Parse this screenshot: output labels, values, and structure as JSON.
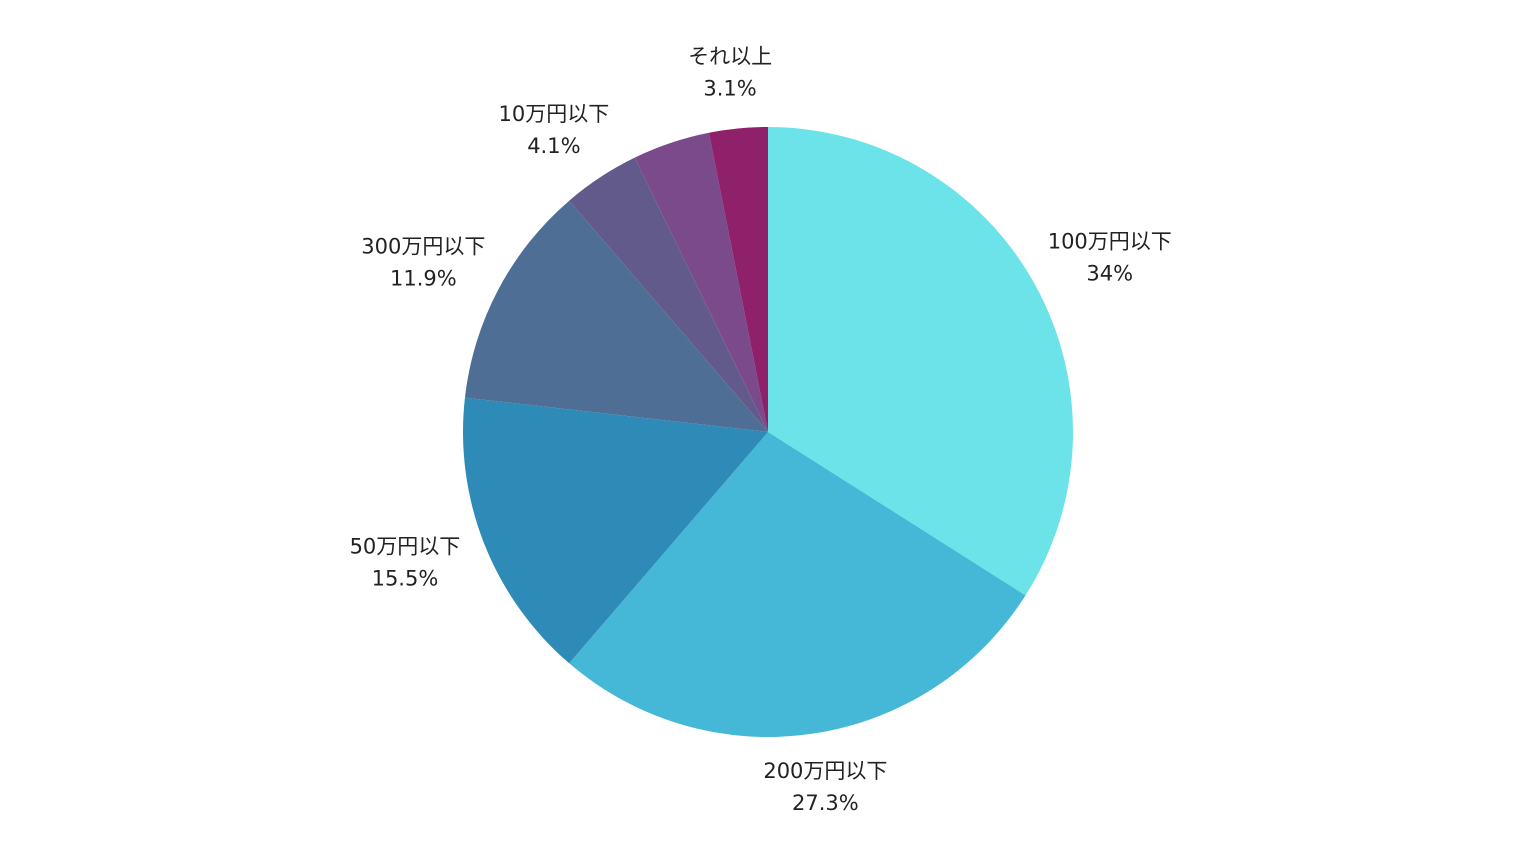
{
  "chart_data": {
    "type": "pie",
    "categories": [
      "100万円以下",
      "200万円以下",
      "50万円以下",
      "300万円以下",
      "10万円以下",
      null,
      "それ以上"
    ],
    "values": [
      34,
      27.3,
      15.5,
      11.9,
      4.1,
      4.1,
      3.1
    ],
    "value_labels": [
      "34%",
      "27.3%",
      "15.5%",
      "11.9%",
      "4.1%",
      null,
      "3.1%"
    ],
    "colors": [
      "#6be3e8",
      "#44b8d6",
      "#2e8bb8",
      "#4f6e96",
      "#635a8c",
      "#7b4a8a",
      "#8e2169"
    ]
  }
}
